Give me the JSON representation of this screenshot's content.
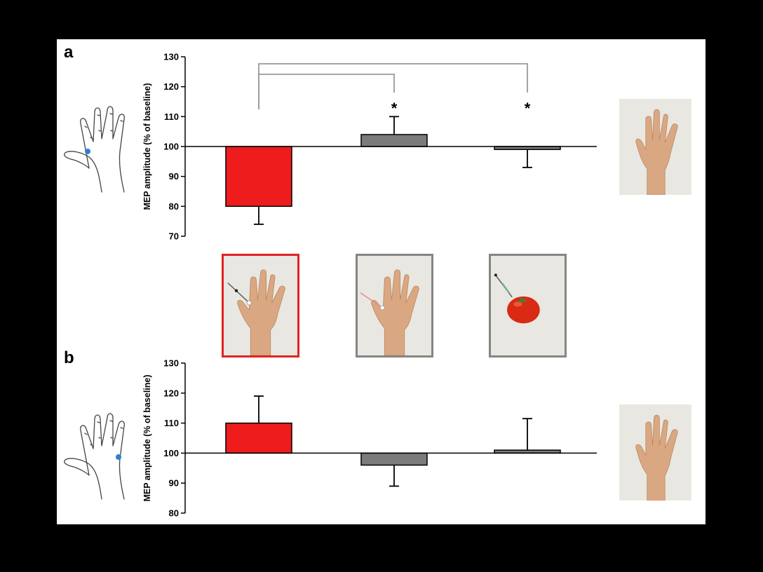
{
  "panels": [
    {
      "label": "a"
    },
    {
      "label": "b"
    }
  ],
  "colors": {
    "red": "#ee1c1c",
    "gray": "#7b7b7b",
    "frame_red": "#e02323",
    "frame_gray": "#858585",
    "bracket": "#9a9a9a",
    "electrode": "#2f7fd1",
    "skin": "#d9a882",
    "photo_bg": "#e9e7e1",
    "tomato": "#d92a14"
  },
  "stimuli": [
    {
      "name": "needle-hand",
      "frame": "red"
    },
    {
      "name": "qtip-hand",
      "frame": "gray"
    },
    {
      "name": "needle-tomato",
      "frame": "gray"
    }
  ],
  "chart_data": [
    {
      "type": "bar",
      "panel": "a",
      "ylabel": "MEP amplitude (% of baseline)",
      "ylim": [
        70,
        130
      ],
      "yticks": [
        70,
        80,
        90,
        100,
        110,
        120,
        130
      ],
      "baseline": 100,
      "values": [
        80,
        104,
        99
      ],
      "error_bars": [
        {
          "direction": "down",
          "value": 74
        },
        {
          "direction": "up",
          "value": 110
        },
        {
          "direction": "down",
          "value": 93
        }
      ],
      "colors": [
        "red",
        "gray",
        "gray"
      ],
      "significance": [
        {
          "from": 0,
          "to": 1,
          "marker": "*"
        },
        {
          "from": 0,
          "to": 2,
          "marker": "*"
        }
      ]
    },
    {
      "type": "bar",
      "panel": "b",
      "ylabel": "MEP amplitude (% of baseline)",
      "ylim": [
        80,
        130
      ],
      "yticks": [
        80,
        90,
        100,
        110,
        120,
        130
      ],
      "baseline": 100,
      "values": [
        110,
        96,
        101
      ],
      "error_bars": [
        {
          "direction": "up",
          "value": 119
        },
        {
          "direction": "down",
          "value": 89
        },
        {
          "direction": "up",
          "value": 111.5
        }
      ],
      "colors": [
        "red",
        "gray",
        "gray"
      ]
    }
  ]
}
